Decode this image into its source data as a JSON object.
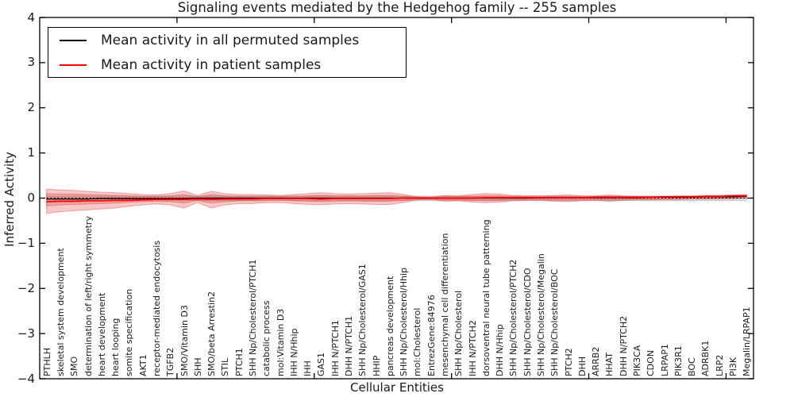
{
  "chart_data": {
    "type": "line",
    "title": "Signaling events mediated by the Hedgehog family -- 255 samples",
    "xlabel": "Cellular Entities",
    "ylabel": "Inferred Activity",
    "ylim": [
      -4,
      4
    ],
    "yticks": [
      -4,
      -3,
      -2,
      -1,
      0,
      1,
      2,
      3,
      4
    ],
    "xticks": [
      10,
      20,
      30,
      40,
      50
    ],
    "x_count": 52,
    "grid": false,
    "legend_position": "upper left",
    "categories": [
      "PTHLH",
      "skeletal system development",
      "SMO",
      "determination of left/right symmetry",
      "heart development",
      "heart looping",
      "somite specification",
      "AKT1",
      "receptor-mediated endocytosis",
      "TGFB2",
      "SMO/Vitamin D3",
      "SHH",
      "SMO/beta Arrestin2",
      "STIL",
      "PTCH1",
      "SHH Np/Cholesterol/PTCH1",
      "catabolic process",
      "mol:Vitamin D3",
      "IHH N/Hhip",
      "IHH",
      "GAS1",
      "IHH N/PTCH1",
      "DHH N/PTCH1",
      "SHH Np/Cholesterol/GAS1",
      "HHIP",
      "pancreas development",
      "SHH Np/Cholesterol/Hhip",
      "mol:Cholesterol",
      "EntrezGene:84976",
      "mesenchymal cell differentiation",
      "SHH Np/Cholesterol",
      "IHH N/PTCH2",
      "dorsoventral neural tube patterning",
      "DHH N/Hhip",
      "SHH Np/Cholesterol/PTCH2",
      "SHH Np/Cholesterol/CDO",
      "SHH Np/Cholesterol/Megalin",
      "SHH Np/Cholesterol/BOC",
      "PTCH2",
      "DHH",
      "ARRB2",
      "HHAT",
      "DHH N/PTCH2",
      "PIK3CA",
      "CDON",
      "LRPAP1",
      "PIK3R1",
      "BOC",
      "ADRBK1",
      "LRP2",
      "PI3K",
      "Megalin/LRPAP1"
    ],
    "series": [
      {
        "name": "Mean activity in all permuted samples",
        "color": "#000000",
        "width": 1.3,
        "values": [
          -0.02,
          -0.02,
          -0.02,
          -0.02,
          -0.01,
          -0.01,
          -0.01,
          -0.01,
          -0.01,
          -0.01,
          -0.01,
          0.0,
          0.0,
          0.0,
          0.0,
          0.0,
          0.0,
          0.0,
          0.0,
          0.0,
          0.0,
          0.0,
          0.0,
          0.0,
          0.0,
          0.0,
          0.0,
          0.0,
          0.0,
          0.0,
          0.0,
          0.0,
          0.0,
          0.0,
          0.0,
          0.0,
          0.01,
          0.01,
          0.01,
          0.01,
          0.01,
          0.01,
          0.01,
          0.01,
          0.02,
          0.02,
          0.02,
          0.02,
          0.03,
          0.03,
          0.03,
          0.04
        ]
      },
      {
        "name": "Mean activity in patient samples",
        "color": "#ff0000",
        "width": 1.7,
        "values": [
          -0.08,
          -0.07,
          -0.07,
          -0.06,
          -0.06,
          -0.05,
          -0.05,
          -0.04,
          -0.03,
          -0.03,
          -0.03,
          -0.02,
          -0.03,
          -0.02,
          -0.02,
          -0.02,
          -0.01,
          -0.01,
          -0.01,
          -0.01,
          -0.02,
          -0.01,
          -0.01,
          -0.01,
          -0.01,
          -0.01,
          0.0,
          0.0,
          0.0,
          0.0,
          0.0,
          0.0,
          0.01,
          0.01,
          0.01,
          0.01,
          0.01,
          0.01,
          0.01,
          0.01,
          0.02,
          0.02,
          0.02,
          0.02,
          0.02,
          0.03,
          0.03,
          0.03,
          0.04,
          0.04,
          0.05,
          0.05
        ]
      }
    ],
    "bands": [
      {
        "name": "permuted-std-band",
        "color": "#aaaaaa",
        "opacity": 0.4,
        "top": 0.045,
        "bottom": -0.055
      },
      {
        "name": "patient-std-outer-band",
        "color": "#e04848",
        "opacity": 0.3,
        "top": [
          0.2,
          0.18,
          0.17,
          0.15,
          0.13,
          0.12,
          0.1,
          0.08,
          0.07,
          0.1,
          0.16,
          0.06,
          0.15,
          0.1,
          0.08,
          0.08,
          0.07,
          0.06,
          0.08,
          0.1,
          0.12,
          0.1,
          0.09,
          0.1,
          0.11,
          0.12,
          0.08,
          0.03,
          0.02,
          0.06,
          0.05,
          0.08,
          0.1,
          0.09,
          0.06,
          0.05,
          0.05,
          0.06,
          0.07,
          0.05,
          0.05,
          0.07,
          0.05,
          0.04,
          0.04,
          0.04,
          0.05,
          0.05,
          0.06,
          0.06,
          0.07,
          0.08
        ],
        "bottom": [
          -0.34,
          -0.3,
          -0.28,
          -0.26,
          -0.24,
          -0.22,
          -0.18,
          -0.15,
          -0.13,
          -0.15,
          -0.22,
          -0.1,
          -0.22,
          -0.15,
          -0.12,
          -0.12,
          -0.1,
          -0.1,
          -0.12,
          -0.14,
          -0.15,
          -0.13,
          -0.12,
          -0.13,
          -0.14,
          -0.14,
          -0.1,
          -0.04,
          -0.03,
          -0.07,
          -0.06,
          -0.09,
          -0.1,
          -0.09,
          -0.06,
          -0.05,
          -0.05,
          -0.07,
          -0.08,
          -0.06,
          -0.05,
          -0.07,
          -0.05,
          -0.04,
          -0.04,
          -0.03,
          -0.03,
          -0.02,
          -0.02,
          -0.01,
          -0.01,
          0.0
        ]
      },
      {
        "name": "patient-std-inner-band",
        "color": "#e04848",
        "opacity": 0.3,
        "top": [
          0.1,
          0.09,
          0.09,
          0.08,
          0.07,
          0.06,
          0.05,
          0.04,
          0.04,
          0.05,
          0.08,
          0.03,
          0.08,
          0.05,
          0.04,
          0.04,
          0.04,
          0.03,
          0.04,
          0.05,
          0.06,
          0.05,
          0.05,
          0.05,
          0.06,
          0.06,
          0.04,
          0.02,
          0.01,
          0.03,
          0.03,
          0.04,
          0.05,
          0.05,
          0.03,
          0.03,
          0.03,
          0.03,
          0.04,
          0.03,
          0.03,
          0.04,
          0.03,
          0.02,
          0.02,
          0.02,
          0.03,
          0.03,
          0.03,
          0.03,
          0.04,
          0.04
        ],
        "bottom": [
          -0.17,
          -0.15,
          -0.14,
          -0.13,
          -0.12,
          -0.11,
          -0.09,
          -0.08,
          -0.07,
          -0.08,
          -0.11,
          -0.05,
          -0.11,
          -0.08,
          -0.06,
          -0.06,
          -0.05,
          -0.05,
          -0.06,
          -0.07,
          -0.08,
          -0.07,
          -0.06,
          -0.07,
          -0.07,
          -0.07,
          -0.05,
          -0.02,
          -0.02,
          -0.04,
          -0.03,
          -0.05,
          -0.05,
          -0.05,
          -0.03,
          -0.03,
          -0.03,
          -0.04,
          -0.04,
          -0.03,
          -0.03,
          -0.04,
          -0.03,
          -0.02,
          -0.02,
          -0.02,
          -0.02,
          -0.01,
          -0.01,
          -0.01,
          0.0,
          0.01
        ]
      }
    ],
    "zero_line": {
      "value": 0,
      "style": "dotted",
      "color": "#000000"
    },
    "frame_color": "#000000"
  }
}
